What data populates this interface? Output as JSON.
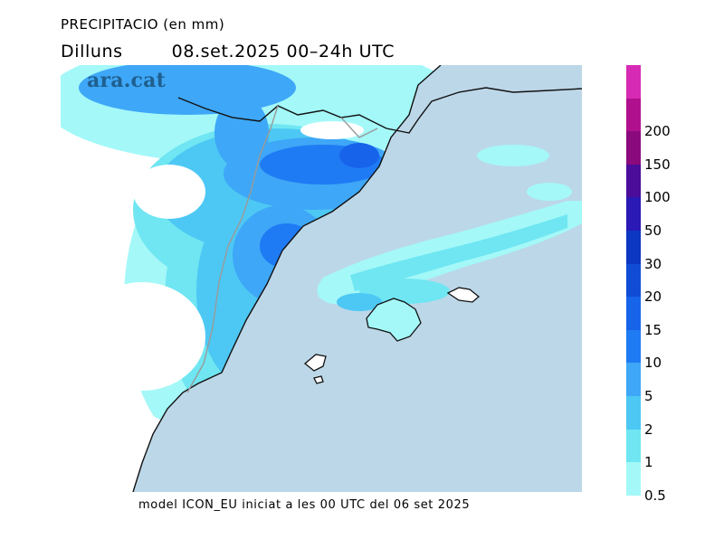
{
  "header": {
    "title": "PRECIPITACIO (en mm)",
    "day": "Dilluns",
    "period": "08.set.2025 00–24h UTC"
  },
  "brand": {
    "logo_text": "ara.cat"
  },
  "footer": {
    "model_note": "model ICON_EU iniciat a les 00 UTC del 06 set 2025"
  },
  "legend": {
    "unit": "mm",
    "levels": [
      {
        "label": "0.5",
        "color": "#a4f8f8"
      },
      {
        "label": "1",
        "color": "#6fe6f2"
      },
      {
        "label": "2",
        "color": "#4dc8f4"
      },
      {
        "label": "5",
        "color": "#3ea7f7"
      },
      {
        "label": "10",
        "color": "#1f7bf4"
      },
      {
        "label": "15",
        "color": "#1763ea"
      },
      {
        "label": "20",
        "color": "#104cd6"
      },
      {
        "label": "30",
        "color": "#0c37c3"
      },
      {
        "label": "50",
        "color": "#2a19b5"
      },
      {
        "label": "100",
        "color": "#4a0c99"
      },
      {
        "label": "150",
        "color": "#8a0a7e"
      },
      {
        "label": "200",
        "color": "#b0108e"
      },
      {
        "label": "",
        "color": "#d62ab4"
      }
    ]
  },
  "map": {
    "sea_color": "#bcd7e8",
    "land_color": "#ffffff",
    "coast_color": "#111111",
    "border_color": "#9a9a9a"
  }
}
